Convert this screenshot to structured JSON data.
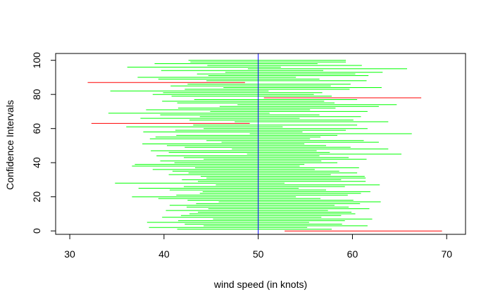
{
  "chart_data": {
    "type": "interval",
    "xlabel": "wind speed (in knots)",
    "ylabel": "Confidence Intervals",
    "xlim": [
      28.5,
      72.0
    ],
    "ylim": [
      -2,
      104
    ],
    "x_ticks": [
      "30",
      "40",
      "50",
      "60",
      "70"
    ],
    "y_ticks": [
      "0",
      "20",
      "40",
      "60",
      "80",
      "100"
    ],
    "x_tick_values": [
      30,
      40,
      50,
      60,
      70
    ],
    "y_tick_values": [
      0,
      20,
      40,
      60,
      80,
      100
    ],
    "reference_line": {
      "x": 50,
      "color": "#0000ff"
    },
    "colors": {
      "covers": "#00ff00",
      "misses": "#ff0000",
      "axis": "#000000"
    },
    "intervals": [
      [
        52.8,
        69.5
      ],
      [
        41.4,
        57.8
      ],
      [
        38.4,
        55.2
      ],
      [
        44.2,
        61.6
      ],
      [
        42.2,
        58.9
      ],
      [
        38.2,
        55.4
      ],
      [
        41.5,
        59.2
      ],
      [
        45.2,
        62.1
      ],
      [
        39.8,
        56.7
      ],
      [
        41.8,
        58.8
      ],
      [
        42.7,
        60.3
      ],
      [
        43.6,
        59.9
      ],
      [
        40.2,
        57.4
      ],
      [
        44.7,
        61.8
      ],
      [
        42.4,
        59.6
      ],
      [
        40.6,
        58.1
      ],
      [
        43.4,
        60.8
      ],
      [
        45.8,
        63.0
      ],
      [
        42.5,
        60.1
      ],
      [
        39.4,
        56.6
      ],
      [
        36.6,
        54.0
      ],
      [
        41.3,
        59.5
      ],
      [
        43.8,
        60.9
      ],
      [
        44.1,
        61.9
      ],
      [
        40.6,
        57.2
      ],
      [
        37.3,
        54.3
      ],
      [
        42.1,
        59.2
      ],
      [
        45.5,
        62.9
      ],
      [
        34.8,
        52.8
      ],
      [
        43.6,
        61.4
      ],
      [
        41.9,
        58.8
      ],
      [
        44.5,
        61.4
      ],
      [
        43.9,
        61.3
      ],
      [
        40.5,
        57.7
      ],
      [
        42.6,
        60.5
      ],
      [
        40.9,
        58.6
      ],
      [
        38.8,
        56.0
      ],
      [
        43.3,
        60.7
      ],
      [
        36.6,
        54.4
      ],
      [
        36.9,
        54.9
      ],
      [
        41.1,
        58.4
      ],
      [
        39.6,
        56.7
      ],
      [
        44.2,
        61.5
      ],
      [
        42.1,
        59.6
      ],
      [
        39.2,
        56.5
      ],
      [
        48.8,
        65.2
      ],
      [
        40.5,
        57.6
      ],
      [
        38.6,
        56.2
      ],
      [
        47.2,
        63.8
      ],
      [
        42.2,
        59.8
      ],
      [
        40.3,
        57.2
      ],
      [
        37.7,
        54.9
      ],
      [
        46.1,
        62.8
      ],
      [
        44.5,
        61.2
      ],
      [
        38.5,
        55.5
      ],
      [
        39.1,
        56.6
      ],
      [
        41.3,
        58.4
      ],
      [
        49.1,
        66.3
      ],
      [
        37.8,
        54.7
      ],
      [
        41.2,
        59.3
      ],
      [
        44.2,
        61.6
      ],
      [
        36.0,
        52.6
      ],
      [
        43.1,
        60.5
      ],
      [
        32.3,
        49.1
      ],
      [
        47.5,
        63.8
      ],
      [
        42.7,
        60.1
      ],
      [
        37.5,
        54.4
      ],
      [
        43.8,
        60.9
      ],
      [
        39.6,
        56.5
      ],
      [
        34.1,
        51.2
      ],
      [
        44.9,
        61.6
      ],
      [
        38.1,
        55.5
      ],
      [
        41.5,
        58.2
      ],
      [
        45.9,
        62.8
      ],
      [
        47.8,
        64.7
      ],
      [
        41.4,
        58.1
      ],
      [
        39.8,
        57.0
      ],
      [
        43.2,
        60.5
      ],
      [
        50.6,
        67.3
      ],
      [
        40.8,
        57.8
      ],
      [
        38.8,
        55.9
      ],
      [
        39.9,
        56.8
      ],
      [
        34.3,
        51.1
      ],
      [
        42.2,
        59.7
      ],
      [
        46.3,
        63.1
      ],
      [
        40.7,
        57.7
      ],
      [
        42.5,
        59.8
      ],
      [
        31.9,
        48.6
      ],
      [
        44.5,
        61.5
      ],
      [
        39.4,
        56.5
      ],
      [
        37.2,
        54.0
      ],
      [
        44.7,
        61.7
      ],
      [
        43.5,
        60.3
      ],
      [
        46.5,
        63.2
      ],
      [
        39.7,
        56.9
      ],
      [
        48.9,
        65.8
      ],
      [
        36.1,
        52.4
      ],
      [
        44.6,
        61.0
      ],
      [
        39.0,
        56.3
      ],
      [
        42.8,
        59.3
      ],
      [
        42.6,
        59.3
      ]
    ]
  }
}
